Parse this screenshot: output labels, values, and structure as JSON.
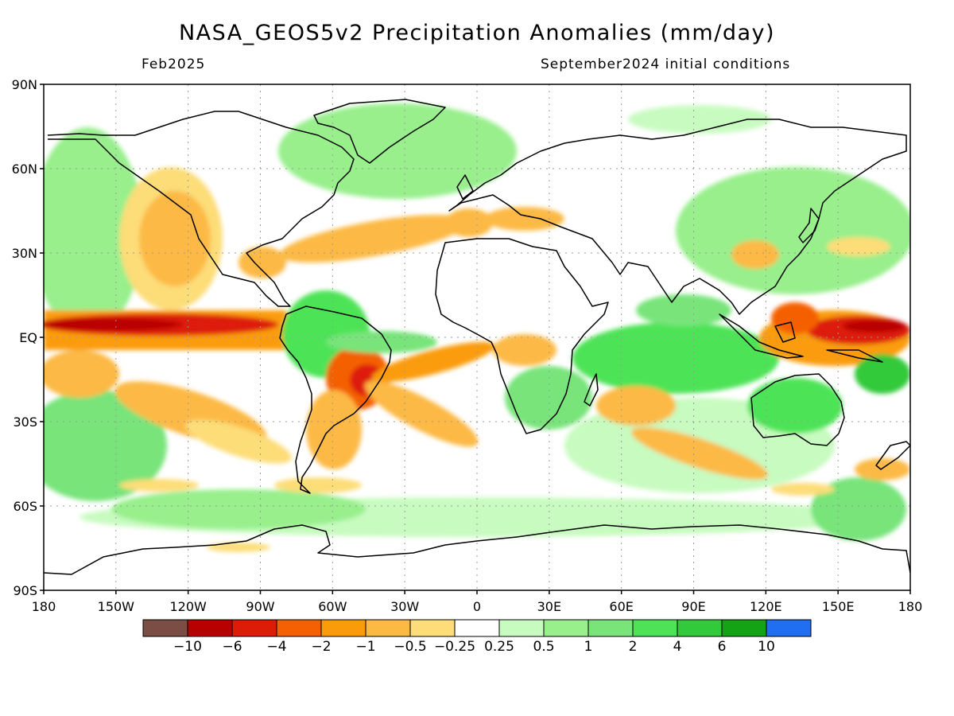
{
  "header": {
    "title": "NASA_GEOS5v2 Precipitation Anomalies (mm/day)",
    "valid_month": "Feb2025",
    "init_conditions": "September2024 initial conditions"
  },
  "map": {
    "lat_ticks": [
      "90N",
      "60N",
      "30N",
      "EQ",
      "30S",
      "60S",
      "90S"
    ],
    "lon_ticks": [
      "180",
      "150W",
      "120W",
      "90W",
      "60W",
      "30W",
      "0",
      "30E",
      "60E",
      "90E",
      "120E",
      "150E",
      "180"
    ],
    "gridlines": true,
    "coastlines": true
  },
  "colorbar": {
    "colors": [
      "#7a4e44",
      "#b90000",
      "#dd1c07",
      "#f46004",
      "#fa9c0a",
      "#fcb944",
      "#fcdd78",
      "#ffffff",
      "#c8fbc0",
      "#98ef8c",
      "#78e47a",
      "#4ee356",
      "#32c93a",
      "#14a314",
      "#1f6ff0"
    ],
    "labels": [
      "−10",
      "−6",
      "−4",
      "−2",
      "−1",
      "−0.5",
      "−0.25",
      "0.25",
      "0.5",
      "1",
      "2",
      "4",
      "6",
      "10"
    ]
  },
  "anomaly_regions": [
    {
      "region": "central-equatorial-pacific",
      "lon": [
        -180,
        -65
      ],
      "lat": [
        -5,
        5
      ],
      "class": "-6"
    },
    {
      "region": "maritime-continent-west-pacific",
      "lon": [
        120,
        180
      ],
      "lat": [
        -5,
        5
      ],
      "class": "-4"
    },
    {
      "region": "eastern-brazil",
      "lon": [
        -55,
        -35
      ],
      "lat": [
        -25,
        -5
      ],
      "class": "-2"
    },
    {
      "region": "south-atlantic-convergence",
      "lon": [
        -45,
        5
      ],
      "lat": [
        -35,
        -10
      ],
      "class": "-1"
    },
    {
      "region": "indian-ocean",
      "lon": [
        50,
        105
      ],
      "lat": [
        -20,
        5
      ],
      "class": "2"
    },
    {
      "region": "australia",
      "lon": [
        115,
        150
      ],
      "lat": [
        -35,
        -12
      ],
      "class": "2"
    },
    {
      "region": "north-atlantic-band",
      "lon": [
        -65,
        0
      ],
      "lat": [
        30,
        45
      ],
      "class": "-1"
    },
    {
      "region": "southern-africa",
      "lon": [
        12,
        40
      ],
      "lat": [
        -30,
        -10
      ],
      "class": "2"
    },
    {
      "region": "amazon",
      "lon": [
        -75,
        -45
      ],
      "lat": [
        -10,
        5
      ],
      "class": "2"
    },
    {
      "region": "northeast-pacific",
      "lon": [
        -150,
        -110
      ],
      "lat": [
        20,
        60
      ],
      "class": "-1"
    }
  ]
}
